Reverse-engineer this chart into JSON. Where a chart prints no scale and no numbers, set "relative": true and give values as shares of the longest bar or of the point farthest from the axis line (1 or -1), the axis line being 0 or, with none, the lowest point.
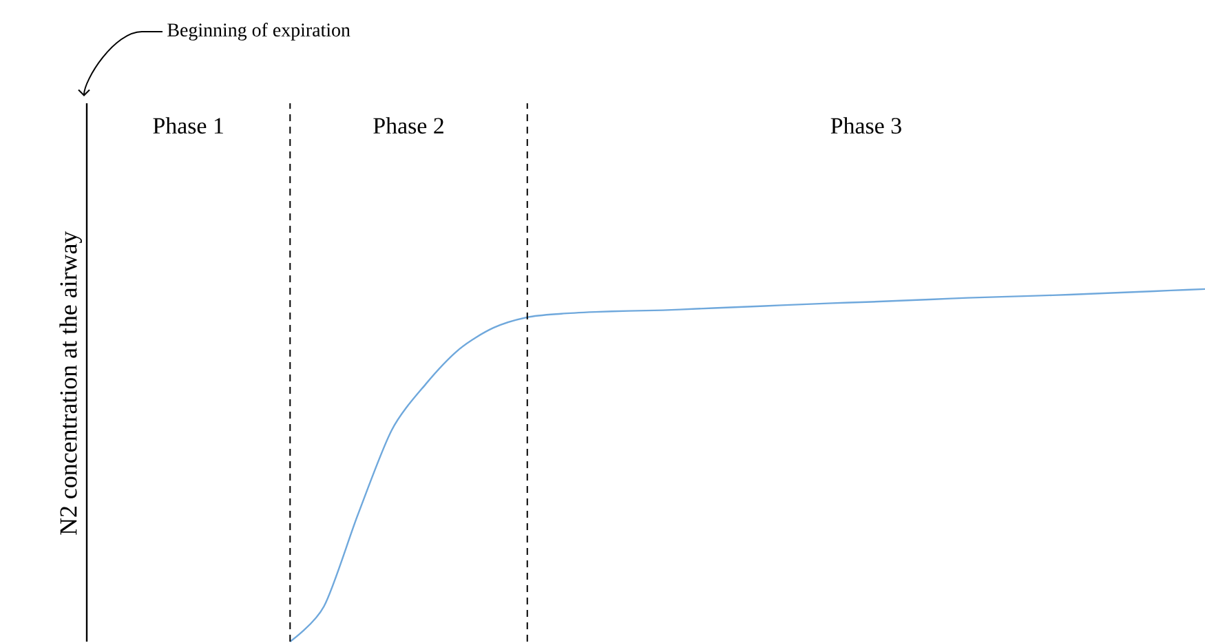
{
  "chart_data": {
    "type": "line",
    "relative": true,
    "ylabel": "N2 concentration at the airway",
    "categories": [
      null,
      null,
      null,
      null,
      null,
      null,
      null,
      null,
      null,
      null,
      null,
      null,
      null,
      null,
      null,
      null,
      null,
      null,
      null,
      null,
      null,
      null,
      null,
      null,
      null,
      null,
      null,
      null,
      null,
      null,
      null,
      null,
      null,
      null
    ],
    "series": [
      {
        "color": "#6fa8dc",
        "values": [
          null,
          null,
          null,
          null,
          null,
          null,
          0,
          0.1,
          0.36,
          0.6,
          0.73,
          0.83,
          0.89,
          0.92,
          0.93,
          0.935,
          0.938,
          0.94,
          0.944,
          0.948,
          0.952,
          0.956,
          0.96,
          0.963,
          0.967,
          0.971,
          0.975,
          0.978,
          0.981,
          0.984,
          0.988,
          0.992,
          0.996,
          1
        ]
      }
    ],
    "annotations": [
      "Beginning of expiration",
      "Phase 1",
      "Phase 2",
      "Phase 3"
    ],
    "legend": false,
    "marker": "none",
    "line_style": "solid"
  }
}
